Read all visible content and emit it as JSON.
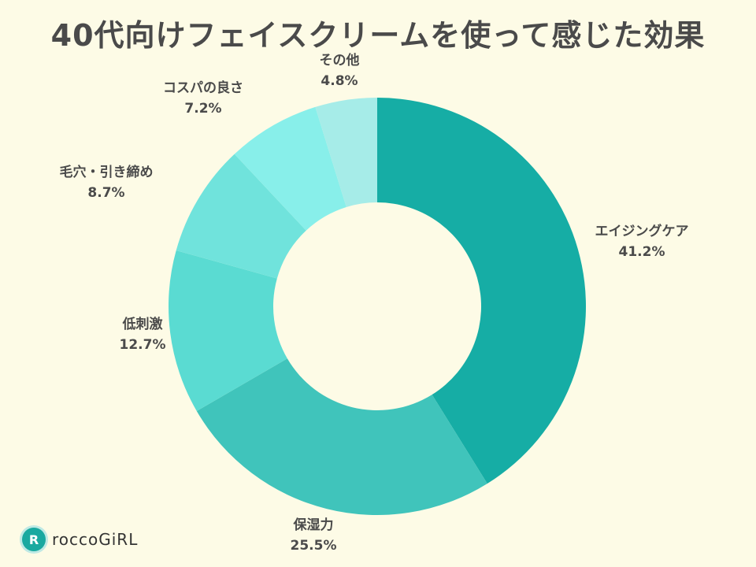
{
  "chart_data": {
    "type": "pie",
    "donut": true,
    "title": "40代向けフェイスクリームを使って感じた効果",
    "categories": [
      "エイジングケア",
      "保湿力",
      "低刺激",
      "毛穴・引き締め",
      "コスパの良さ",
      "その他"
    ],
    "values": [
      41.2,
      25.5,
      12.7,
      8.7,
      7.2,
      4.8
    ],
    "value_labels": [
      "41.2%",
      "25.5%",
      "12.7%",
      "8.7%",
      "7.2%",
      "4.8%"
    ],
    "colors": [
      "#16ada5",
      "#40c4bb",
      "#5adbd2",
      "#70e3dc",
      "#88efea",
      "#a6ece8"
    ],
    "start": "12 o'clock, clockwise"
  },
  "logo": {
    "mark": "R",
    "text": "roccoGiRL"
  }
}
